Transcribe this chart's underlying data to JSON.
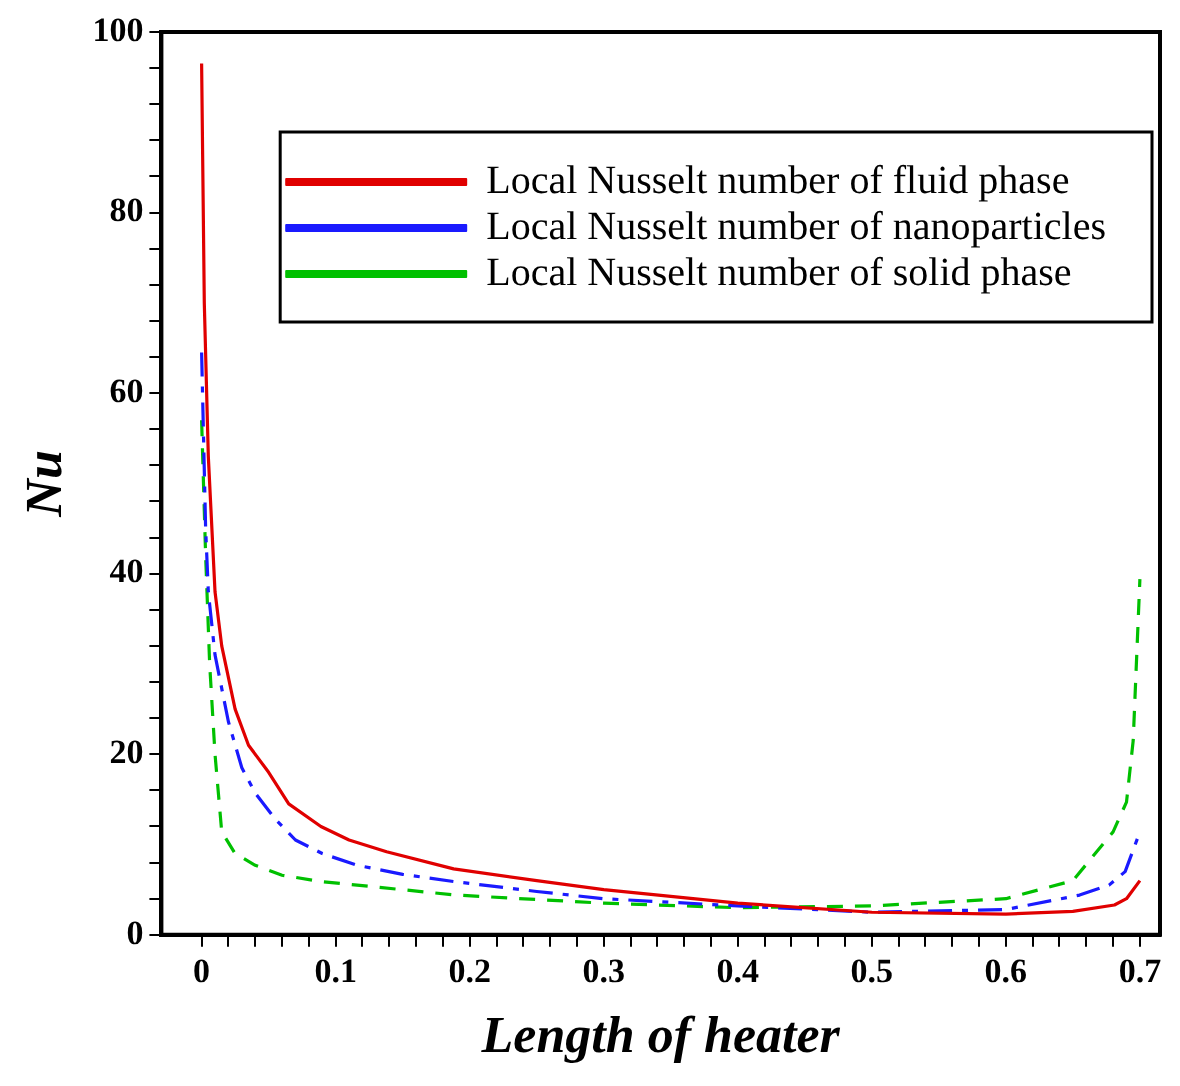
{
  "chart_data": {
    "type": "line",
    "xlabel": "Length of heater",
    "ylabel": "Nu",
    "xlim": [
      -0.03,
      0.715
    ],
    "ylim": [
      0,
      100
    ],
    "xticks": [
      0,
      {
        "value": 0.02,
        "label": null
      },
      {
        "value": 0.04,
        "label": null
      },
      {
        "value": 0.06,
        "label": null
      },
      {
        "value": 0.08,
        "label": null
      },
      0.1,
      {
        "value": 0.12,
        "label": null
      },
      {
        "value": 0.14,
        "label": null
      },
      {
        "value": 0.16,
        "label": null
      },
      {
        "value": 0.18,
        "label": null
      },
      0.2,
      {
        "value": 0.22,
        "label": null
      },
      {
        "value": 0.24,
        "label": null
      },
      {
        "value": 0.26,
        "label": null
      },
      {
        "value": 0.28,
        "label": null
      },
      0.3,
      {
        "value": 0.32,
        "label": null
      },
      {
        "value": 0.34,
        "label": null
      },
      {
        "value": 0.36,
        "label": null
      },
      {
        "value": 0.38,
        "label": null
      },
      0.4,
      {
        "value": 0.42,
        "label": null
      },
      {
        "value": 0.44,
        "label": null
      },
      {
        "value": 0.46,
        "label": null
      },
      {
        "value": 0.48,
        "label": null
      },
      0.5,
      {
        "value": 0.52,
        "label": null
      },
      {
        "value": 0.54,
        "label": null
      },
      {
        "value": 0.56,
        "label": null
      },
      {
        "value": 0.58,
        "label": null
      },
      0.6,
      {
        "value": 0.62,
        "label": null
      },
      {
        "value": 0.64,
        "label": null
      },
      {
        "value": 0.66,
        "label": null
      },
      {
        "value": 0.68,
        "label": null
      },
      0.7
    ],
    "yticks": [
      0,
      {
        "value": 4,
        "label": null
      },
      {
        "value": 8,
        "label": null
      },
      {
        "value": 12,
        "label": null
      },
      {
        "value": 16,
        "label": null
      },
      20,
      {
        "value": 24,
        "label": null
      },
      {
        "value": 28,
        "label": null
      },
      {
        "value": 32,
        "label": null
      },
      {
        "value": 36,
        "label": null
      },
      40,
      {
        "value": 44,
        "label": null
      },
      {
        "value": 48,
        "label": null
      },
      {
        "value": 52,
        "label": null
      },
      {
        "value": 56,
        "label": null
      },
      60,
      {
        "value": 64,
        "label": null
      },
      {
        "value": 68,
        "label": null
      },
      {
        "value": 72,
        "label": null
      },
      {
        "value": 76,
        "label": null
      },
      80,
      {
        "value": 84,
        "label": null
      },
      {
        "value": 88,
        "label": null
      },
      {
        "value": 92,
        "label": null
      },
      {
        "value": 96,
        "label": null
      },
      100
    ],
    "grid": false,
    "legend": "top right",
    "marker": "none",
    "series": [
      {
        "name": "Local Nusselt number of fluid phase",
        "color": "#e00000",
        "line_style": "solid",
        "x": [
          0,
          0.002,
          0.005,
          0.01,
          0.015,
          0.025,
          0.035,
          0.05,
          0.065,
          0.089,
          0.11,
          0.138,
          0.188,
          0.25,
          0.3,
          0.4,
          0.5,
          0.6,
          0.65,
          0.681,
          0.69,
          0.7
        ],
        "values": [
          96.5,
          70,
          53,
          38,
          32,
          25,
          21,
          18,
          14.5,
          12,
          10.5,
          9.2,
          7.3,
          6,
          5,
          3.5,
          2.5,
          2.3,
          2.6,
          3.3,
          4,
          6
        ]
      },
      {
        "name": "Local Nusselt number of nanoparticles",
        "color": "#1a1aff",
        "line_style": "dashdot",
        "x": [
          0,
          0.003,
          0.005,
          0.01,
          0.02,
          0.03,
          0.04,
          0.055,
          0.07,
          0.09,
          0.116,
          0.15,
          0.188,
          0.25,
          0.3,
          0.4,
          0.5,
          0.6,
          0.655,
          0.677,
          0.689,
          0.7
        ],
        "values": [
          64.5,
          45,
          38,
          31,
          23.6,
          18.5,
          15.7,
          12.8,
          10.5,
          9,
          7.7,
          6.7,
          5.9,
          4.8,
          4,
          3.2,
          2.5,
          2.8,
          4.4,
          5.5,
          7,
          11.4
        ]
      },
      {
        "name": "Local Nusselt number of solid phase",
        "color": "#00c000",
        "line_style": "dashed",
        "x": [
          0,
          0.003,
          0.006,
          0.01,
          0.015,
          0.025,
          0.04,
          0.06,
          0.089,
          0.19,
          0.3,
          0.4,
          0.5,
          0.6,
          0.65,
          0.68,
          0.69,
          0.695,
          0.7
        ],
        "values": [
          57,
          42,
          30,
          20,
          11.4,
          9,
          7.7,
          6.6,
          5.9,
          4.4,
          3.5,
          3,
          3.2,
          4,
          6,
          11.4,
          14.7,
          21.5,
          39.4
        ]
      }
    ]
  }
}
